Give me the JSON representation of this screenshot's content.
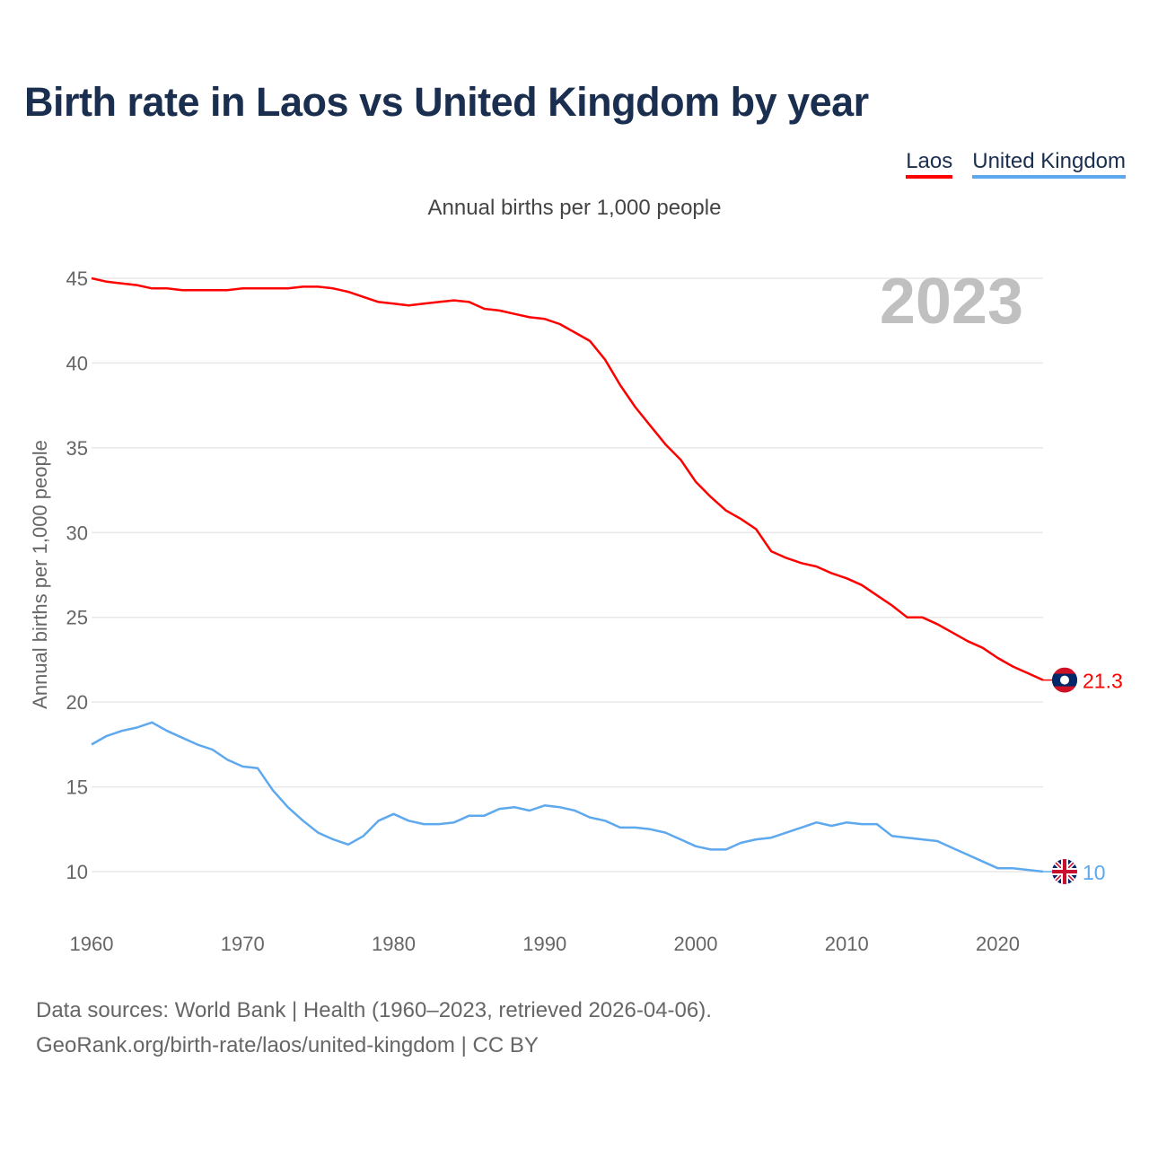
{
  "title": "Birth rate in Laos vs United Kingdom by year",
  "subtitle": "Annual births per 1,000 people",
  "footer": {
    "line1": "Data sources: World Bank | Health (1960–2023, retrieved 2026-04-06).",
    "line2": "GeoRank.org/birth-rate/laos/united-kingdom | CC BY"
  },
  "chart_data": {
    "type": "line",
    "title": "Birth rate in Laos vs United Kingdom by year",
    "ylabel": "Annual births per 1,000 people",
    "xlabel": "",
    "year_watermark": "2023",
    "xlim": [
      1960,
      2023
    ],
    "ylim": [
      10,
      45
    ],
    "xticks": [
      1960,
      1970,
      1980,
      1990,
      2000,
      2010,
      2020
    ],
    "yticks": [
      10,
      15,
      20,
      25,
      30,
      35,
      40,
      45
    ],
    "grid": true,
    "legend_position": "top-right",
    "x_start": 1960,
    "series": [
      {
        "name": "Laos",
        "color": "#ff0000",
        "end_label": "21.3",
        "flag": "laos-flag",
        "values": [
          45.0,
          44.8,
          44.7,
          44.6,
          44.4,
          44.4,
          44.3,
          44.3,
          44.3,
          44.3,
          44.4,
          44.4,
          44.4,
          44.4,
          44.5,
          44.5,
          44.4,
          44.2,
          43.9,
          43.6,
          43.5,
          43.4,
          43.5,
          43.6,
          43.7,
          43.6,
          43.2,
          43.1,
          42.9,
          42.7,
          42.6,
          42.3,
          41.8,
          41.3,
          40.2,
          38.7,
          37.4,
          36.3,
          35.2,
          34.3,
          33.0,
          32.1,
          31.3,
          30.8,
          30.2,
          28.9,
          28.5,
          28.2,
          28.0,
          27.6,
          27.3,
          26.9,
          26.3,
          25.7,
          25.0,
          25.0,
          24.6,
          24.1,
          23.6,
          23.2,
          22.6,
          22.1,
          21.7,
          21.3
        ]
      },
      {
        "name": "United Kingdom",
        "color": "#5ea8ee",
        "end_label": "10",
        "flag": "uk-flag",
        "values": [
          17.5,
          18.0,
          18.3,
          18.5,
          18.8,
          18.3,
          17.9,
          17.5,
          17.2,
          16.6,
          16.2,
          16.1,
          14.8,
          13.8,
          13.0,
          12.3,
          11.9,
          11.6,
          12.1,
          13.0,
          13.4,
          13.0,
          12.8,
          12.8,
          12.9,
          13.3,
          13.3,
          13.7,
          13.8,
          13.6,
          13.9,
          13.8,
          13.6,
          13.2,
          13.0,
          12.6,
          12.6,
          12.5,
          12.3,
          11.9,
          11.5,
          11.3,
          11.3,
          11.7,
          11.9,
          12.0,
          12.3,
          12.6,
          12.9,
          12.7,
          12.9,
          12.8,
          12.8,
          12.1,
          12.0,
          11.9,
          11.8,
          11.4,
          11.0,
          10.6,
          10.2,
          10.2,
          10.1,
          10.0
        ]
      }
    ]
  }
}
